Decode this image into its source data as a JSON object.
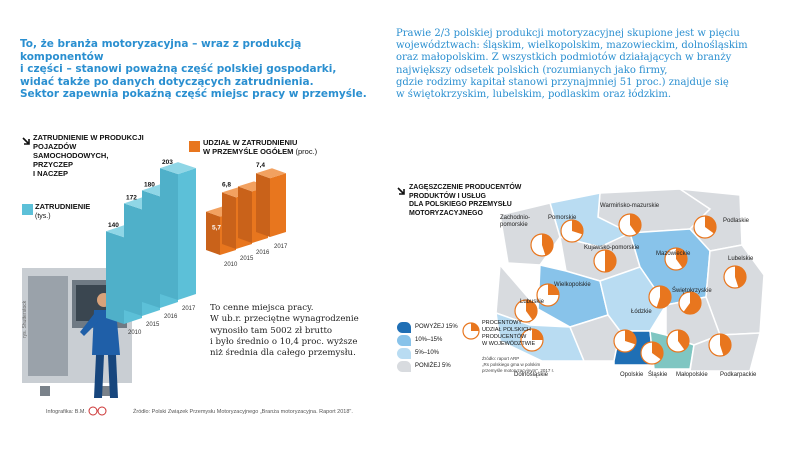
{
  "intro_left": "To, że branża motoryzacyjna – wraz z produkcją komponentów\ni części – stanowi poważną część polskiej gospodarki,\nwidać także po danych dotyczących zatrudnienia.\nSektor zapewnia pokaźną część miejsc pracy w przemyśle.",
  "intro_right": "Prawie 2/3 polskiej produkcji motoryzacyjnej skupione jest w pięciu\nwojewództwach: śląskim, wielkopolskim, mazowieckim, dolnośląskim\noraz małopolskim. Z wszystkich podmiotów działających w branży\nnajwiększy odsetek polskich (rozumianych jako firmy,\ngdzie rodzimy kapitał stanowi przynajmniej 51 proc.) znajduje się\nw świętokrzyskim, lubelskim, podlaskim oraz łódzkim.",
  "employment_title": "ZATRUDNIENIE W PRODUKCJI\nPOJAZDÓW\nSAMOCHODOWYCH,\nPRZYCZEP\nI NACZEP",
  "employment_legend": "ZATRUDNIENIE",
  "employment_unit": "(tys.)",
  "share_legend": "UDZIAŁ W ZATRUDNIENIU\nW PRZEMYŚLE OGÓŁEM",
  "share_unit": "(proc.)",
  "colors": {
    "blue": "#2a8fd0",
    "teal": "#5cc0d8",
    "orange": "#e8761e",
    "dark_blue": "#1f6fb5",
    "light_blue": "#b9dcf2",
    "mid_blue": "#88c3ea",
    "gray": "#d8dbdf"
  },
  "chart_data": [
    {
      "type": "bar",
      "title": "ZATRUDNIENIE W PRODUKCJI POJAZDÓW SAMOCHODOWYCH, PRZYCZEP I NACZEP",
      "series": [
        {
          "name": "ZATRUDNIENIE (tys.)",
          "values": [
            140,
            172,
            180,
            203
          ]
        }
      ],
      "categories": [
        "2010",
        "2015",
        "2016",
        "2017"
      ],
      "value_labels": [
        "140",
        "172",
        "180",
        "203"
      ],
      "category_labels": [
        "2010",
        "2015",
        "2016",
        "2017"
      ]
    },
    {
      "type": "bar",
      "title": "UDZIAŁ W ZATRUDNIENIU W PRZEMYŚLE OGÓŁEM (proc.)",
      "series": [
        {
          "name": "UDZIAŁ W ZATRUDNIENIU W PRZEMYŚLE OGÓŁEM (proc.)",
          "values": [
            5.7,
            6.8,
            6.8,
            7.4
          ]
        }
      ],
      "categories": [
        "2010",
        "2015",
        "2016",
        "2017"
      ],
      "value_labels": [
        "5,7",
        "6,8",
        "6,8",
        "7,4"
      ],
      "category_labels": [
        "2010",
        "2015",
        "2016",
        "2017"
      ]
    }
  ],
  "note": "To cenne miejsca pracy.\nW ub.r. przeciętne wynagrodzenie\nwynosiło tam 5002 zł brutto\ni było średnio o 10,4 proc. wyższe\nniż średnia dla całego przemysłu.",
  "photo_credit": "rys. Shutterstock",
  "infographic_credit": "Infografika: B.M.",
  "source_bottom": "Źródło: Polski Związek Przemysłu Motoryzacyjnego „Branża motoryzacyjna. Raport 2018\".",
  "map_title": "ZAGĘSZCZENIE PRODUCENTÓW\nPRODUKTÓW I USŁUG\nDLA POLSKIEGO PRZEMYSŁU\nMOTORYZACYJNEGO",
  "map_legend": [
    {
      "label": "POWYŻEJ 15%",
      "color": "#1f6fb5"
    },
    {
      "label": "10%–15%",
      "color": "#88c3ea"
    },
    {
      "label": "5%–10%",
      "color": "#b9dcf2"
    },
    {
      "label": "PONIŻEJ 5%",
      "color": "#d8dbdf"
    }
  ],
  "pie_legend": "PROCENTOWY\nUDZIAŁ POLSKICH\nPRODUCENTÓW\nW WOJEWÓDZTWIE",
  "map_source": "Źródło: raport ARP\n„Rs polskiego gma w polskim\nprzemyśle motoryzacyjnym\", 2017 r.",
  "voivodeships": [
    "Warmińsko-mazurskie",
    "Pomorskie",
    "Podlaskie",
    "Zachodnio-\npomorskie",
    "Kujawsko-pomorskie",
    "Mazowieckie",
    "Lubelskie",
    "Wielkopolskie",
    "Łódzkie",
    "Świętokrzyskie",
    "Lubuskie",
    "Dolnośląskie",
    "Opolskie",
    "Śląskie",
    "Małopolskie",
    "Podkarpackie"
  ],
  "pie_values_pct": [
    40,
    30,
    35,
    45,
    50,
    40,
    45,
    25,
    55,
    60,
    40,
    25,
    30,
    35,
    40,
    45
  ]
}
